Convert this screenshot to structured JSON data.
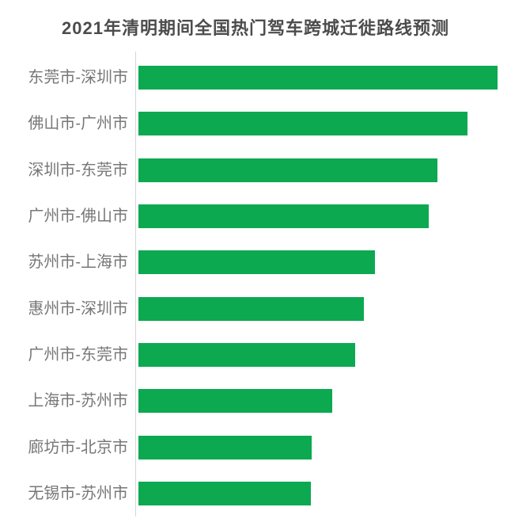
{
  "chart": {
    "title": "2021年清明期间全国热门驾车跨城迁徙路线预测"
  },
  "colors": {
    "bar_green": "#0ca951",
    "title_text": "#4c4c4c",
    "label_text": "#777777",
    "axis_line": "#d6d6d6",
    "background": "#ffffff"
  },
  "chart_data": {
    "type": "bar",
    "orientation": "horizontal",
    "title": "2021年清明期间全国热门驾车跨城迁徙路线预测",
    "categories": [
      "东莞市-深圳市",
      "佛山市-广州市",
      "深圳市-东莞市",
      "广州市-佛山市",
      "苏州市-上海市",
      "惠州市-深圳市",
      "广州市-东莞市",
      "上海市-苏州市",
      "廊坊市-北京市",
      "无锡市-苏州市"
    ],
    "values": [
      100,
      91.6,
      83.3,
      80.8,
      65.9,
      62.8,
      60.4,
      54.0,
      48.2,
      48.0
    ],
    "value_unit": "relative bar length (longest bar = 100); no numeric axis or data labels shown",
    "xlabel": "",
    "ylabel": "",
    "legend": false,
    "grid": false,
    "data_labels": false,
    "bar_color": "#0ca951"
  }
}
